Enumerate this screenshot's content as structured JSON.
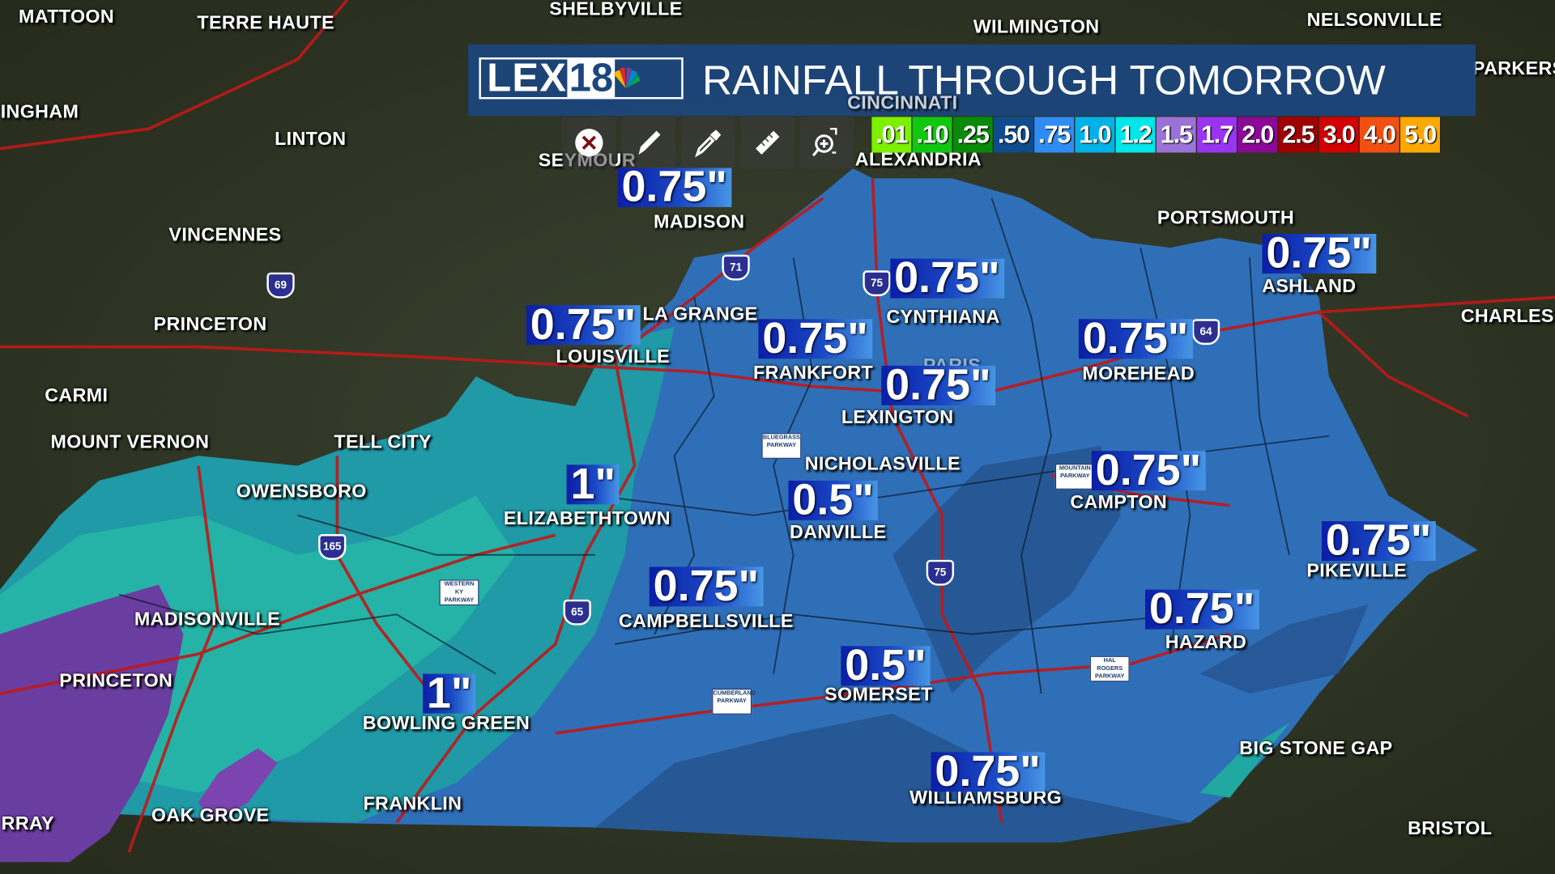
{
  "header": {
    "logo": "LEX18",
    "logo_lex": "LEX",
    "logo_num": "18",
    "title": "RAINFALL THROUGH TOMORROW"
  },
  "toolbar": [
    {
      "icon": "close-circle-icon"
    },
    {
      "icon": "pencil-icon"
    },
    {
      "icon": "eyedropper-icon"
    },
    {
      "icon": "ruler-icon"
    },
    {
      "icon": "zoom-region-icon"
    }
  ],
  "legend": [
    {
      "label": ".01",
      "color": "#7cf000"
    },
    {
      "label": ".10",
      "color": "#10c810"
    },
    {
      "label": ".25",
      "color": "#0a8a0a"
    },
    {
      "label": ".50",
      "color": "#0f4c8e"
    },
    {
      "label": ".75",
      "color": "#2f8cf5"
    },
    {
      "label": "1.0",
      "color": "#00b2e8"
    },
    {
      "label": "1.2",
      "color": "#00e6ea"
    },
    {
      "label": "1.5",
      "color": "#9a72d8"
    },
    {
      "label": "1.7",
      "color": "#9a34f0"
    },
    {
      "label": "2.0",
      "color": "#8a0a96"
    },
    {
      "label": "2.5",
      "color": "#a00000"
    },
    {
      "label": "3.0",
      "color": "#d20000"
    },
    {
      "label": "4.0",
      "color": "#f05010"
    },
    {
      "label": "5.0",
      "color": "#ffa800"
    }
  ],
  "cities": [
    "MATTOON",
    "TERRE HAUTE",
    "SHELBYVILLE",
    "WILMINGTON",
    "NELSONVILLE",
    "PARKERSBURG",
    "INGHAM",
    "LINTON",
    "CINCINNATI",
    "SEYMOUR",
    "ALEXANDRIA",
    "MADISON",
    "VINCENNES",
    "PORTSMOUTH",
    "ASHLAND",
    "PRINCETON",
    "LA GRANGE",
    "CYNTHIANA",
    "CHARLES",
    "LOUISVILLE",
    "FRANKFORT",
    "MOREHEAD",
    "PARIS",
    "CARMI",
    "LEXINGTON",
    "MOUNT VERNON",
    "TELL CITY",
    "NICHOLASVILLE",
    "OWENSBORO",
    "CAMPTON",
    "ELIZABETHTOWN",
    "DANVILLE",
    "PIKEVILLE",
    "MADISONVILLE",
    "CAMPBELLSVILLE",
    "HAZARD",
    "PRINCETON",
    "SOMERSET",
    "BOWLING GREEN",
    "BIG STONE GAP",
    "FRANKLIN",
    "OAK GROVE",
    "WILLIAMSBURG",
    "RRAY",
    "BRISTOL"
  ],
  "rain_values": [
    "0.75\"",
    "0.75\"",
    "0.75\"",
    "0.75\"",
    "0.75\"",
    "0.75\"",
    "0.75\"",
    "1\"",
    "0.75\"",
    "0.5\"",
    "0.75\"",
    "0.75\"",
    "0.75\"",
    "0.5\"",
    "1\"",
    "0.75\""
  ],
  "shields": [
    "69",
    "71",
    "75",
    "64",
    "165",
    "65",
    "75"
  ],
  "parkways": [
    "BLUEGRASS PARKWAY",
    "WESTERN KY PARKWAY",
    "MOUNTAIN PARKWAY",
    "CUMBERLAND PARKWAY",
    "HAL ROGERS PARKWAY"
  ],
  "colors": {
    "base_blue": "#2f6fb8",
    "teal": "#1fa3a8",
    "dark_blue": "#24508a",
    "purple": "#6a3ea0",
    "roads": "#c01818"
  }
}
